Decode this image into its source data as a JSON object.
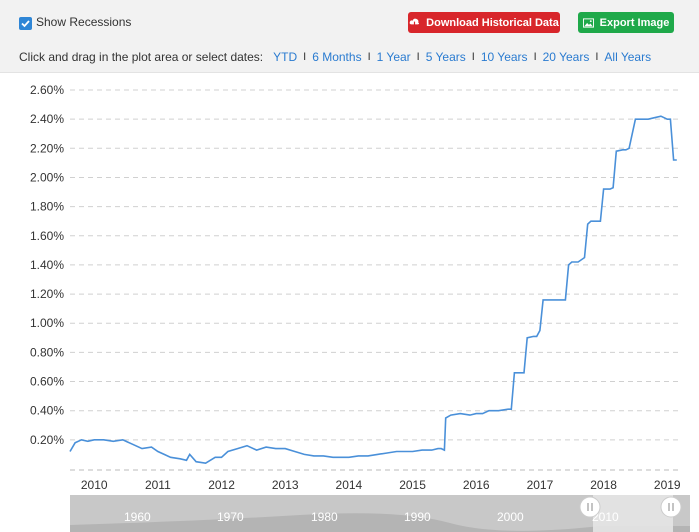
{
  "toolbar": {
    "show_recessions_label": "Show Recessions",
    "show_recessions_checked": true,
    "download_label": "Download Historical Data",
    "export_label": "Export Image",
    "range_prompt": "Click and drag in the plot area or select dates:",
    "ranges": [
      "YTD",
      "6 Months",
      "1 Year",
      "5 Years",
      "10 Years",
      "20 Years",
      "All Years"
    ],
    "colors": {
      "download": "#d8262b",
      "export": "#1fa94a",
      "link": "#2a7bd0"
    }
  },
  "navigator": {
    "labels": [
      "1960",
      "1970",
      "1980",
      "1990",
      "2000",
      "2010"
    ]
  },
  "chart_data": {
    "type": "line",
    "title": "",
    "xlabel": "",
    "ylabel": "",
    "x_ticks": [
      "2010",
      "2011",
      "2012",
      "2013",
      "2014",
      "2015",
      "2016",
      "2017",
      "2018",
      "2019"
    ],
    "y_ticks": [
      "0.20%",
      "0.40%",
      "0.60%",
      "0.80%",
      "1.00%",
      "1.20%",
      "1.40%",
      "1.60%",
      "1.80%",
      "2.00%",
      "2.20%",
      "2.40%",
      "2.60%"
    ],
    "xlim": [
      2009.62,
      2019.2
    ],
    "ylim": [
      0.0,
      2.6
    ],
    "grid": true,
    "line_color": "#4a90d9",
    "series": [
      {
        "x": [
          2009.62,
          2009.7,
          2009.8,
          2009.9,
          2010.0,
          2010.15,
          2010.3,
          2010.45,
          2010.6,
          2010.75,
          2010.9,
          2011.0,
          2011.1,
          2011.2,
          2011.35,
          2011.45,
          2011.5,
          2011.6,
          2011.75,
          2011.9,
          2012.0,
          2012.1,
          2012.25,
          2012.4,
          2012.55,
          2012.7,
          2012.85,
          2013.0,
          2013.15,
          2013.3,
          2013.45,
          2013.6,
          2013.75,
          2013.9,
          2014.0,
          2014.15,
          2014.3,
          2014.45,
          2014.6,
          2014.75,
          2014.9,
          2015.0,
          2015.15,
          2015.3,
          2015.4,
          2015.45,
          2015.5,
          2015.52,
          2015.6,
          2015.75,
          2015.9,
          2016.0,
          2016.1,
          2016.2,
          2016.35,
          2016.5,
          2016.55,
          2016.6,
          2016.7,
          2016.75,
          2016.8,
          2016.9,
          2016.95,
          2017.0,
          2017.05,
          2017.15,
          2017.2,
          2017.25,
          2017.4,
          2017.45,
          2017.5,
          2017.6,
          2017.7,
          2017.75,
          2017.8,
          2017.9,
          2017.95,
          2018.0,
          2018.1,
          2018.15,
          2018.2,
          2018.3,
          2018.35,
          2018.4,
          2018.5,
          2018.6,
          2018.7,
          2018.8,
          2018.9,
          2018.95,
          2019.0,
          2019.05,
          2019.1,
          2019.15
        ],
        "values": [
          0.12,
          0.18,
          0.2,
          0.19,
          0.2,
          0.2,
          0.19,
          0.2,
          0.17,
          0.14,
          0.15,
          0.12,
          0.1,
          0.08,
          0.07,
          0.06,
          0.1,
          0.05,
          0.04,
          0.08,
          0.08,
          0.12,
          0.14,
          0.16,
          0.13,
          0.15,
          0.14,
          0.14,
          0.12,
          0.1,
          0.09,
          0.09,
          0.08,
          0.08,
          0.08,
          0.09,
          0.09,
          0.1,
          0.11,
          0.12,
          0.12,
          0.12,
          0.13,
          0.13,
          0.14,
          0.14,
          0.13,
          0.35,
          0.37,
          0.38,
          0.37,
          0.38,
          0.38,
          0.4,
          0.4,
          0.41,
          0.41,
          0.66,
          0.66,
          0.66,
          0.9,
          0.91,
          0.91,
          0.95,
          1.16,
          1.16,
          1.16,
          1.16,
          1.16,
          1.4,
          1.42,
          1.42,
          1.45,
          1.68,
          1.7,
          1.7,
          1.7,
          1.92,
          1.92,
          1.93,
          2.18,
          2.19,
          2.19,
          2.2,
          2.4,
          2.4,
          2.4,
          2.41,
          2.42,
          2.41,
          2.4,
          2.4,
          2.12,
          2.12
        ]
      }
    ]
  }
}
